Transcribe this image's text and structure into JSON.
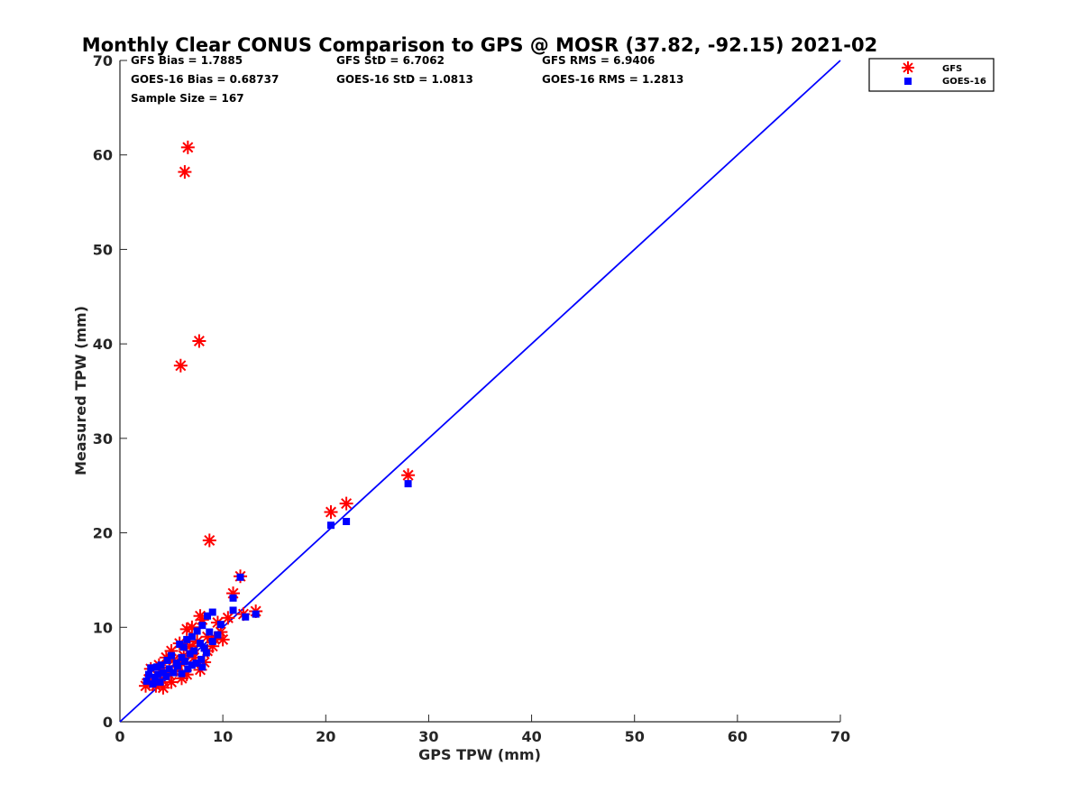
{
  "chart_data": {
    "type": "scatter",
    "title": "Monthly Clear CONUS Comparison to GPS @ MOSR (37.82, -92.15) 2021-02",
    "xlabel": "GPS TPW (mm)",
    "ylabel": "Measured TPW (mm)",
    "xlim": [
      0,
      70
    ],
    "ylim": [
      0,
      70
    ],
    "xticks": [
      0,
      10,
      20,
      30,
      40,
      50,
      60,
      70
    ],
    "yticks": [
      0,
      10,
      20,
      30,
      40,
      50,
      60,
      70
    ],
    "grid": false,
    "legend_position": "top-right outside",
    "stats": [
      "GFS Bias = 1.7885",
      "GFS StD = 6.7062",
      "GFS RMS = 6.9406",
      "GOES-16 Bias = 0.68737",
      "GOES-16 StD = 1.0813",
      "GOES-16 RMS = 1.2813",
      "Sample Size = 167"
    ],
    "reference_line": {
      "x": [
        0,
        70
      ],
      "y": [
        0,
        70
      ],
      "color": "#0000ff"
    },
    "series": [
      {
        "name": "GFS",
        "marker": "asterisk",
        "color": "#ff0000",
        "points": [
          [
            6.6,
            60.8
          ],
          [
            6.3,
            58.2
          ],
          [
            7.7,
            40.3
          ],
          [
            5.9,
            37.7
          ],
          [
            8.7,
            19.2
          ],
          [
            28.0,
            26.1
          ],
          [
            22.0,
            23.1
          ],
          [
            20.5,
            22.2
          ],
          [
            11.7,
            15.4
          ],
          [
            11.0,
            13.6
          ],
          [
            13.2,
            11.7
          ],
          [
            12.0,
            11.4
          ],
          [
            10.5,
            11.0
          ],
          [
            9.5,
            10.5
          ],
          [
            8.0,
            10.8
          ],
          [
            7.8,
            11.2
          ],
          [
            7.0,
            10.0
          ],
          [
            6.5,
            9.8
          ],
          [
            9.2,
            8.8
          ],
          [
            10.0,
            8.7
          ],
          [
            9.8,
            9.5
          ],
          [
            8.5,
            9.0
          ],
          [
            7.5,
            8.5
          ],
          [
            6.8,
            8.0
          ],
          [
            5.8,
            8.3
          ],
          [
            5.0,
            7.5
          ],
          [
            4.5,
            6.8
          ],
          [
            3.8,
            6.0
          ],
          [
            3.0,
            5.6
          ],
          [
            2.8,
            4.5
          ],
          [
            2.5,
            3.8
          ],
          [
            3.5,
            3.8
          ],
          [
            4.2,
            3.6
          ],
          [
            5.0,
            4.2
          ],
          [
            6.0,
            4.6
          ],
          [
            6.5,
            5.0
          ],
          [
            7.8,
            5.5
          ],
          [
            8.2,
            6.3
          ],
          [
            7.2,
            6.8
          ],
          [
            6.0,
            6.2
          ],
          [
            5.5,
            5.5
          ],
          [
            4.8,
            5.0
          ],
          [
            4.0,
            4.5
          ],
          [
            3.2,
            4.0
          ],
          [
            8.5,
            7.5
          ],
          [
            9.0,
            8.0
          ],
          [
            7.0,
            7.5
          ],
          [
            6.2,
            7.0
          ],
          [
            5.2,
            6.5
          ],
          [
            4.0,
            5.3
          ]
        ]
      },
      {
        "name": "GOES-16",
        "marker": "square",
        "color": "#0000ff",
        "points": [
          [
            28.0,
            25.2
          ],
          [
            22.0,
            21.2
          ],
          [
            20.5,
            20.8
          ],
          [
            11.7,
            15.3
          ],
          [
            11.0,
            13.1
          ],
          [
            13.2,
            11.4
          ],
          [
            12.2,
            11.1
          ],
          [
            11.0,
            11.8
          ],
          [
            9.0,
            11.6
          ],
          [
            8.5,
            11.2
          ],
          [
            9.8,
            10.3
          ],
          [
            8.0,
            10.2
          ],
          [
            7.5,
            9.6
          ],
          [
            7.0,
            9.0
          ],
          [
            6.5,
            8.7
          ],
          [
            7.8,
            8.3
          ],
          [
            8.2,
            7.8
          ],
          [
            9.0,
            8.5
          ],
          [
            8.7,
            9.5
          ],
          [
            7.2,
            7.5
          ],
          [
            6.8,
            7.2
          ],
          [
            6.0,
            6.8
          ],
          [
            5.8,
            8.2
          ],
          [
            5.5,
            6.2
          ],
          [
            5.0,
            7.0
          ],
          [
            4.6,
            6.5
          ],
          [
            4.0,
            6.0
          ],
          [
            3.6,
            5.8
          ],
          [
            3.0,
            5.7
          ],
          [
            2.8,
            5.0
          ],
          [
            2.6,
            4.3
          ],
          [
            3.2,
            4.0
          ],
          [
            3.9,
            4.2
          ],
          [
            4.5,
            4.8
          ],
          [
            5.2,
            5.2
          ],
          [
            6.0,
            5.1
          ],
          [
            6.6,
            5.6
          ],
          [
            7.4,
            6.2
          ],
          [
            7.9,
            6.6
          ],
          [
            8.4,
            7.3
          ],
          [
            4.2,
            5.2
          ],
          [
            3.4,
            4.7
          ],
          [
            5.6,
            5.9
          ],
          [
            6.3,
            6.4
          ],
          [
            7.0,
            6.0
          ],
          [
            8.0,
            5.8
          ],
          [
            4.8,
            5.6
          ],
          [
            3.7,
            5.0
          ],
          [
            9.5,
            9.2
          ],
          [
            6.2,
            7.9
          ]
        ]
      }
    ]
  }
}
